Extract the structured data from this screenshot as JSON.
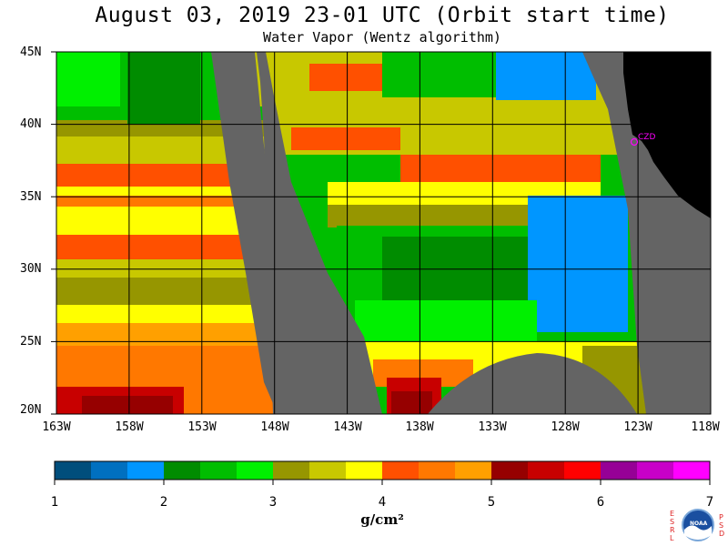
{
  "title": "August 03, 2019  23-01 UTC  (Orbit start time)",
  "subtitle": "Water Vapor (Wentz algorithm)",
  "lat_labels": [
    "45N",
    "40N",
    "35N",
    "30N",
    "25N",
    "20N"
  ],
  "lon_labels": [
    "163W",
    "158W",
    "153W",
    "148W",
    "143W",
    "138W",
    "133W",
    "128W",
    "123W",
    "118W"
  ],
  "station_label": "CZD",
  "colorbar": {
    "ticks": [
      "1",
      "2",
      "3",
      "4",
      "5",
      "6",
      "7"
    ],
    "unit": "g/cm²",
    "colors": [
      "#004e7c",
      "#0070c0",
      "#0096ff",
      "#008c00",
      "#00be00",
      "#00f000",
      "#969600",
      "#c8c800",
      "#ffff00",
      "#ff5000",
      "#ff7800",
      "#ffa000",
      "#960000",
      "#c80000",
      "#ff0000",
      "#960096",
      "#c800c8",
      "#ff00ff"
    ]
  },
  "logo": {
    "left_letters": [
      "E",
      "S",
      "R",
      "L"
    ],
    "right_letters": [
      "P",
      "S",
      "D"
    ],
    "center": "NOAA"
  },
  "colors": {
    "gap": "#646464",
    "land": "#000000",
    "grid": "#000000",
    "station": "#ff00ff"
  }
}
